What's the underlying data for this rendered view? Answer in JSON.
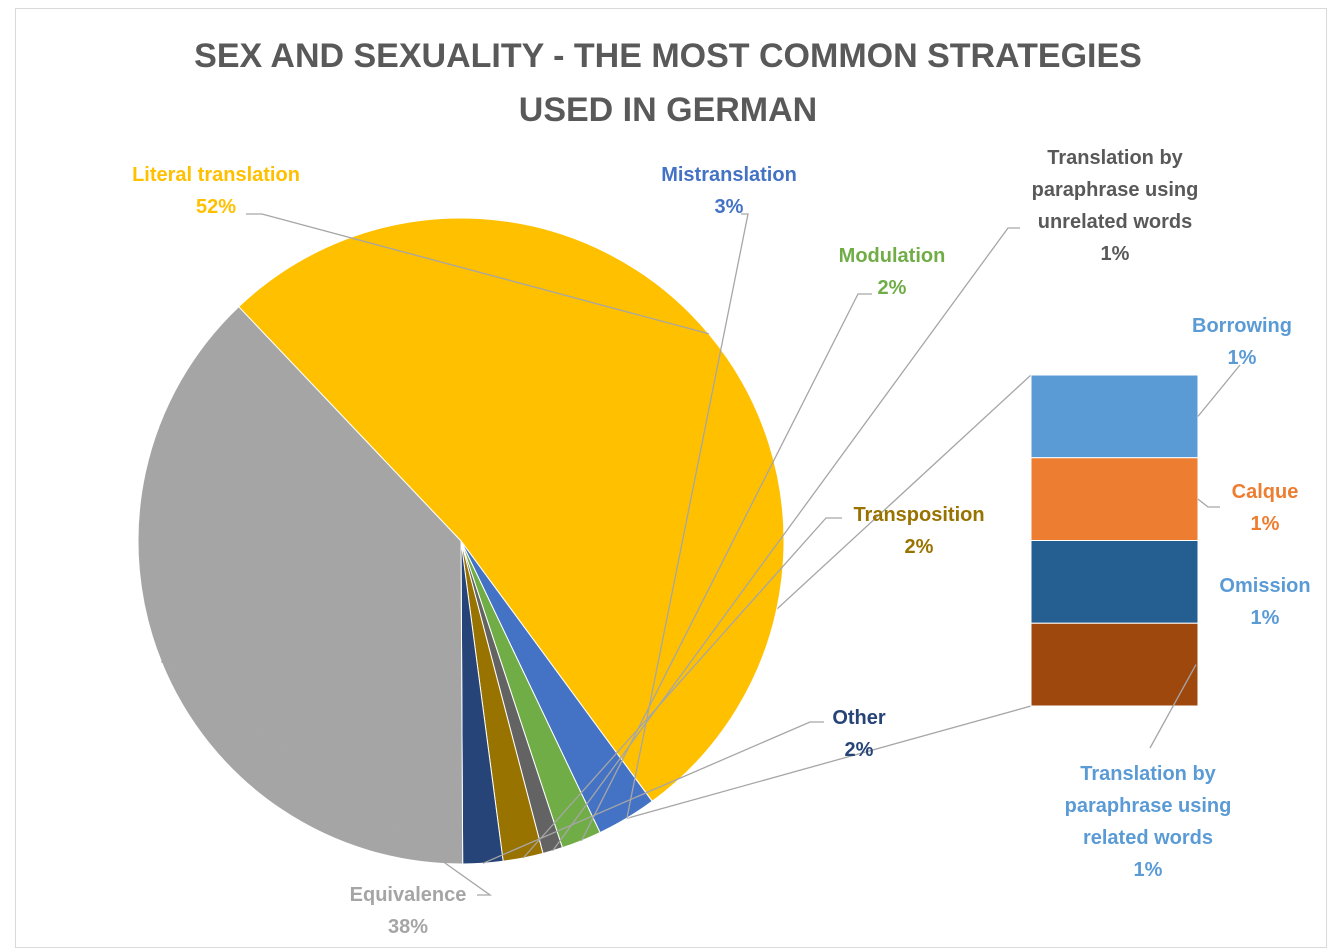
{
  "chart_data": {
    "type": "pie",
    "subtype": "pie-of-bar",
    "title": "SEX AND SEXUALITY - THE MOST COMMON STRATEGIES USED IN GERMAN",
    "title_lines": [
      "SEX AND SEXUALITY - THE MOST COMMON STRATEGIES",
      "USED IN GERMAN"
    ],
    "slices": [
      {
        "key": "literal",
        "label": "Literal translation",
        "value_label": "52%",
        "value": 52,
        "color": "#FFC000",
        "label_color": "#FFC000",
        "label_lines": [
          "Literal translation"
        ]
      },
      {
        "key": "mistranslation",
        "label": "Mistranslation",
        "value_label": "3%",
        "value": 3,
        "color": "#4472C4",
        "label_color": "#4472C4",
        "label_lines": [
          "Mistranslation"
        ]
      },
      {
        "key": "modulation",
        "label": "Modulation",
        "value_label": "2%",
        "value": 2,
        "color": "#70AD47",
        "label_color": "#70AD47",
        "label_lines": [
          "Modulation"
        ]
      },
      {
        "key": "unrelated",
        "label": "Translation by paraphrase using unrelated words",
        "value_label": "1%",
        "value": 1,
        "color": "#636363",
        "label_color": "#595959",
        "label_lines": [
          "Translation by",
          "paraphrase using",
          "unrelated words"
        ]
      },
      {
        "key": "transposition",
        "label": "Transposition",
        "value_label": "2%",
        "value": 2,
        "color": "#997300",
        "label_color": "#997300",
        "label_lines": [
          "Transposition"
        ]
      },
      {
        "key": "other",
        "label": "Other",
        "value_label": "2%",
        "value": 2,
        "color": "#264478",
        "label_color": "#264478",
        "label_lines": [
          "Other"
        ]
      },
      {
        "key": "equivalence",
        "label": "Equivalence",
        "value_label": "38%",
        "value": 38,
        "color": "#A5A5A5",
        "label_color": "#A5A5A5",
        "label_lines": [
          "Equivalence"
        ]
      }
    ],
    "other_breakdown": [
      {
        "key": "borrowing",
        "label": "Borrowing",
        "value_label": "1%",
        "value": 1,
        "color": "#5B9BD5",
        "label_color": "#5B9BD5",
        "label_lines": [
          "Borrowing"
        ]
      },
      {
        "key": "calque",
        "label": "Calque",
        "value_label": "1%",
        "value": 1,
        "color": "#ED7D31",
        "label_color": "#ED7D31",
        "label_lines": [
          "Calque"
        ]
      },
      {
        "key": "omission",
        "label": "Omission",
        "value_label": "1%",
        "value": 1,
        "color": "#255E91",
        "label_color": "#5B9BD5",
        "label_lines": [
          "Omission"
        ]
      },
      {
        "key": "related",
        "label": "Translation by paraphrase using related words",
        "value_label": "1%",
        "value": 1,
        "color": "#9E480E",
        "label_color": "#5B9BD5",
        "label_lines": [
          "Translation by",
          "paraphrase using",
          "related words"
        ]
      }
    ],
    "legend": "none"
  }
}
